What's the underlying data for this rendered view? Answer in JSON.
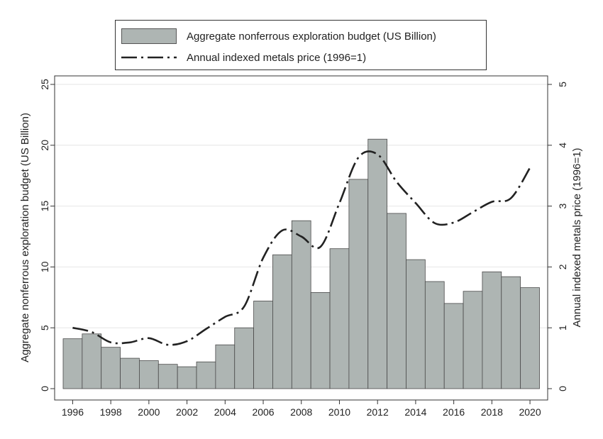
{
  "chart_data": {
    "type": "bar",
    "title": "",
    "x": [
      1996,
      1997,
      1998,
      1999,
      2000,
      2001,
      2002,
      2003,
      2004,
      2005,
      2006,
      2007,
      2008,
      2009,
      2010,
      2011,
      2012,
      2013,
      2014,
      2015,
      2016,
      2017,
      2018,
      2019,
      2020
    ],
    "xticks": [
      "1996",
      "1998",
      "2000",
      "2002",
      "2004",
      "2006",
      "2008",
      "2010",
      "2012",
      "2014",
      "2016",
      "2018",
      "2020"
    ],
    "series": [
      {
        "name": "Aggregate nonferrous exploration budget (US Billion)",
        "kind": "bar",
        "axis": "left",
        "color": "#aeb5b3",
        "values": [
          4.1,
          4.5,
          3.4,
          2.5,
          2.3,
          2.0,
          1.8,
          2.2,
          3.6,
          5.0,
          7.2,
          11.0,
          13.8,
          7.9,
          11.5,
          17.2,
          20.5,
          14.4,
          10.6,
          8.8,
          7.0,
          8.0,
          9.6,
          9.2,
          8.3
        ]
      },
      {
        "name": "Annual indexed metals price (1996=1)",
        "kind": "line",
        "style": "dash-dot",
        "axis": "right",
        "color": "#222222",
        "values": [
          1.0,
          0.93,
          0.76,
          0.76,
          0.83,
          0.72,
          0.78,
          0.98,
          1.18,
          1.35,
          2.15,
          2.6,
          2.5,
          2.33,
          3.05,
          3.8,
          3.85,
          3.4,
          3.05,
          2.72,
          2.73,
          2.9,
          3.07,
          3.13,
          3.63
        ]
      }
    ],
    "ylabel_left": "Aggregate nonferrous exploration budget (US Billion)",
    "ylim_left": [
      0,
      25
    ],
    "yticks_left": [
      "0",
      "5",
      "10",
      "15",
      "20",
      "25"
    ],
    "ylabel_right": "Annual indexed metals price (1996=1)",
    "ylim_right": [
      0,
      5
    ],
    "yticks_right": [
      "0",
      "1",
      "2",
      "3",
      "4",
      "5"
    ],
    "grid": true,
    "legend_position": "top"
  }
}
